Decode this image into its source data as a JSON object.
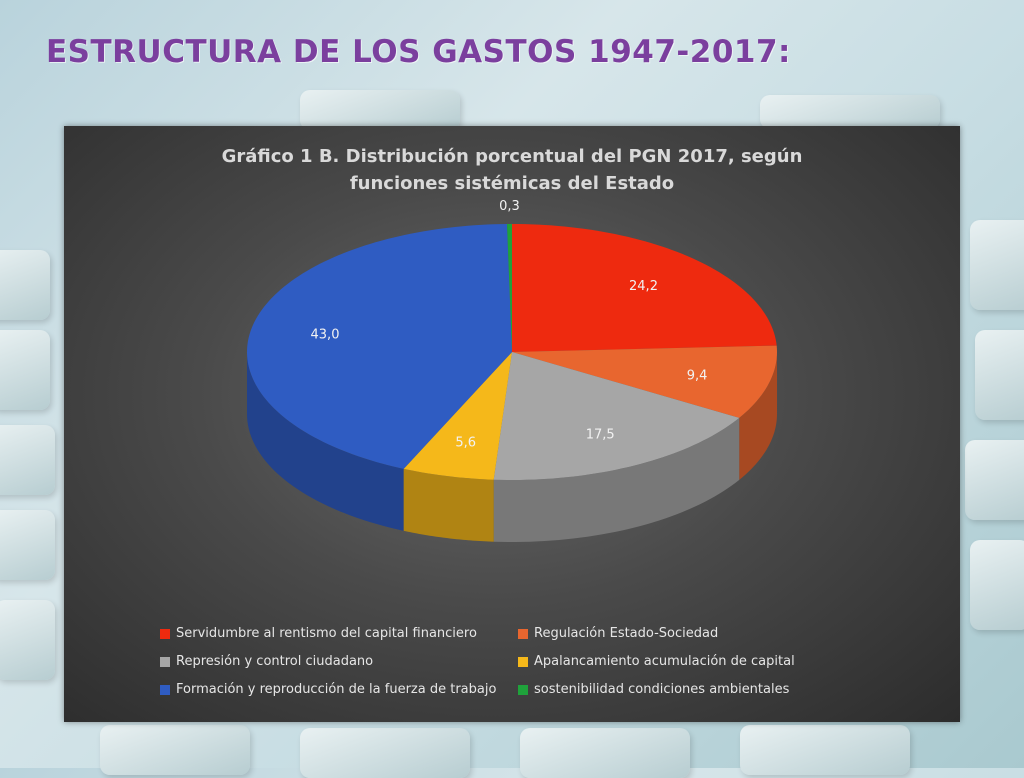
{
  "slide": {
    "title": "ESTRUCTURA DE LOS GASTOS 1947-2017:"
  },
  "chart_data": {
    "type": "pie",
    "title_lines": [
      "Gráfico 1 B. Distribución porcentual del PGN 2017, según",
      "funciones sistémicas del Estado"
    ],
    "categories": [
      "Servidumbre al rentismo del capital financiero",
      "Regulación Estado-Sociedad",
      "Represión y control ciudadano",
      "Apalancamiento acumulación de capital",
      "Formación y reproducción de la fuerza de trabajo",
      "sostenibilidad condiciones ambientales"
    ],
    "values": [
      24.2,
      9.4,
      17.5,
      5.6,
      43.0,
      0.3
    ],
    "labels": [
      "24,2",
      "9,4",
      "17,5",
      "5,6",
      "43,0",
      "0,3"
    ],
    "colors": [
      "#ee2a0f",
      "#e8662f",
      "#a6a6a6",
      "#f5b81a",
      "#2f5cc2",
      "#1fa23b"
    ],
    "legend_position": "bottom",
    "style": "3D"
  }
}
